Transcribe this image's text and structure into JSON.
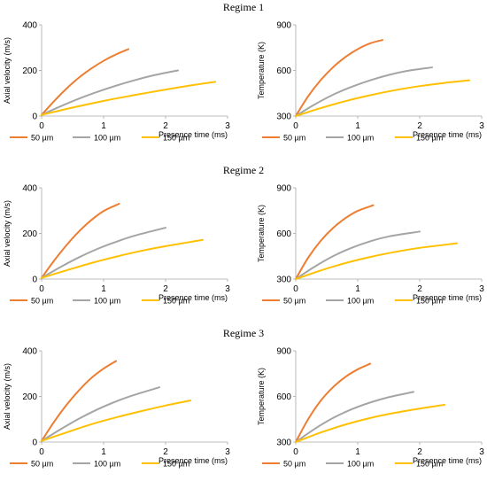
{
  "chart_data": {
    "type": "line",
    "x_unit": "ms",
    "colors": {
      "50 µm": "#ed7d31",
      "100 µm": "#a5a5a5",
      "150 µm": "#ffc000"
    },
    "legend": [
      "50 µm",
      "100 µm",
      "150 µm"
    ],
    "legend_position": "bottom",
    "regimes": [
      {
        "title": "Regime 1",
        "charts": [
          {
            "ylabel": "Axial velocity (m/s)",
            "xlabel": "Presence time (ms)",
            "xlim": [
              0,
              3
            ],
            "ylim": [
              0,
              400
            ],
            "xticks": [
              "0",
              "1",
              "2",
              "3"
            ],
            "yticks": [
              "0",
              "200",
              "400"
            ],
            "series": [
              {
                "name": "50 µm",
                "x": [
                  0,
                  0.2,
                  0.4,
                  0.6,
                  0.8,
                  1.0,
                  1.2,
                  1.4
                ],
                "y": [
                  5,
                  65,
                  120,
                  168,
                  208,
                  242,
                  270,
                  293
                ]
              },
              {
                "name": "100 µm",
                "x": [
                  0,
                  0.3,
                  0.6,
                  0.9,
                  1.2,
                  1.5,
                  1.8,
                  2.2
                ],
                "y": [
                  5,
                  42,
                  76,
                  106,
                  133,
                  157,
                  178,
                  200
                ]
              },
              {
                "name": "150 µm",
                "x": [
                  0,
                  0.4,
                  0.8,
                  1.2,
                  1.6,
                  2.0,
                  2.4,
                  2.8
                ],
                "y": [
                  5,
                  31,
                  55,
                  77,
                  97,
                  116,
                  134,
                  150
                ]
              }
            ]
          },
          {
            "ylabel": "Temperature (K)",
            "xlabel": "Presence time (ms)",
            "xlim": [
              0,
              3
            ],
            "ylim": [
              300,
              900
            ],
            "xticks": [
              "0",
              "1",
              "2",
              "3"
            ],
            "yticks": [
              "300",
              "600",
              "900"
            ],
            "series": [
              {
                "name": "50 µm",
                "x": [
                  0,
                  0.2,
                  0.4,
                  0.6,
                  0.8,
                  1.0,
                  1.2,
                  1.4
                ],
                "y": [
                  300,
                  430,
                  535,
                  620,
                  688,
                  740,
                  778,
                  800
                ]
              },
              {
                "name": "100 µm",
                "x": [
                  0,
                  0.3,
                  0.6,
                  0.9,
                  1.2,
                  1.5,
                  1.8,
                  2.2
                ],
                "y": [
                  300,
                  375,
                  440,
                  492,
                  535,
                  570,
                  597,
                  620
                ]
              },
              {
                "name": "150 µm",
                "x": [
                  0,
                  0.4,
                  0.8,
                  1.2,
                  1.6,
                  2.0,
                  2.4,
                  2.8
                ],
                "y": [
                  300,
                  352,
                  398,
                  437,
                  470,
                  497,
                  518,
                  535
                ]
              }
            ]
          }
        ]
      },
      {
        "title": "Regime 2",
        "charts": [
          {
            "ylabel": "Axial velocity (m/s)",
            "xlabel": "Presence time (ms)",
            "xlim": [
              0,
              3
            ],
            "ylim": [
              0,
              400
            ],
            "xticks": [
              "0",
              "1",
              "2",
              "3"
            ],
            "yticks": [
              "0",
              "200",
              "400"
            ],
            "series": [
              {
                "name": "50 µm",
                "x": [
                  0,
                  0.2,
                  0.4,
                  0.6,
                  0.8,
                  1.0,
                  1.25
                ],
                "y": [
                  5,
                  80,
                  148,
                  208,
                  258,
                  298,
                  330
                ]
              },
              {
                "name": "100 µm",
                "x": [
                  0,
                  0.3,
                  0.6,
                  0.9,
                  1.2,
                  1.5,
                  2.0
                ],
                "y": [
                  5,
                  52,
                  95,
                  132,
                  163,
                  190,
                  225
                ]
              },
              {
                "name": "150 µm",
                "x": [
                  0,
                  0.4,
                  0.8,
                  1.2,
                  1.6,
                  2.0,
                  2.6
                ],
                "y": [
                  5,
                  38,
                  70,
                  98,
                  123,
                  144,
                  172
                ]
              }
            ]
          },
          {
            "ylabel": "Temperature (K)",
            "xlabel": "Presence time (ms)",
            "xlim": [
              0,
              3
            ],
            "ylim": [
              300,
              900
            ],
            "xticks": [
              "0",
              "1",
              "2",
              "3"
            ],
            "yticks": [
              "300",
              "600",
              "900"
            ],
            "series": [
              {
                "name": "50 µm",
                "x": [
                  0,
                  0.2,
                  0.4,
                  0.6,
                  0.8,
                  1.0,
                  1.25
                ],
                "y": [
                  300,
                  440,
                  550,
                  635,
                  700,
                  748,
                  785
                ]
              },
              {
                "name": "100 µm",
                "x": [
                  0,
                  0.3,
                  0.6,
                  0.9,
                  1.2,
                  1.5,
                  2.0
                ],
                "y": [
                  300,
                  380,
                  450,
                  505,
                  548,
                  580,
                  612
                ]
              },
              {
                "name": "150 µm",
                "x": [
                  0,
                  0.4,
                  0.8,
                  1.2,
                  1.6,
                  2.0,
                  2.6
                ],
                "y": [
                  300,
                  356,
                  405,
                  445,
                  478,
                  505,
                  535
                ]
              }
            ]
          }
        ]
      },
      {
        "title": "Regime 3",
        "charts": [
          {
            "ylabel": "Axial velocity (m/s)",
            "xlabel": "Presence time (ms)",
            "xlim": [
              0,
              3
            ],
            "ylim": [
              0,
              400
            ],
            "xticks": [
              "0",
              "1",
              "2",
              "3"
            ],
            "yticks": [
              "0",
              "200",
              "400"
            ],
            "series": [
              {
                "name": "50 µm",
                "x": [
                  0,
                  0.2,
                  0.4,
                  0.6,
                  0.8,
                  1.0,
                  1.2
                ],
                "y": [
                  5,
                  88,
                  162,
                  226,
                  280,
                  322,
                  355
                ]
              },
              {
                "name": "100 µm",
                "x": [
                  0,
                  0.3,
                  0.6,
                  0.9,
                  1.2,
                  1.5,
                  1.9
                ],
                "y": [
                  5,
                  55,
                  102,
                  143,
                  178,
                  207,
                  240
                ]
              },
              {
                "name": "150 µm",
                "x": [
                  0,
                  0.4,
                  0.8,
                  1.2,
                  1.6,
                  2.0,
                  2.4
                ],
                "y": [
                  5,
                  42,
                  78,
                  108,
                  135,
                  160,
                  182
                ]
              }
            ]
          },
          {
            "ylabel": "Temperature (K)",
            "xlabel": "Presence time (ms)",
            "xlim": [
              0,
              3
            ],
            "ylim": [
              300,
              900
            ],
            "xticks": [
              "0",
              "1",
              "2",
              "3"
            ],
            "yticks": [
              "300",
              "600",
              "900"
            ],
            "series": [
              {
                "name": "50 µm",
                "x": [
                  0,
                  0.2,
                  0.4,
                  0.6,
                  0.8,
                  1.0,
                  1.2
                ],
                "y": [
                  300,
                  450,
                  570,
                  660,
                  728,
                  778,
                  815
                ]
              },
              {
                "name": "100 µm",
                "x": [
                  0,
                  0.3,
                  0.6,
                  0.9,
                  1.2,
                  1.5,
                  1.9
                ],
                "y": [
                  300,
                  385,
                  458,
                  515,
                  560,
                  595,
                  630
                ]
              },
              {
                "name": "150 µm",
                "x": [
                  0,
                  0.4,
                  0.8,
                  1.2,
                  1.6,
                  2.0,
                  2.4
                ],
                "y": [
                  300,
                  362,
                  415,
                  458,
                  492,
                  520,
                  545
                ]
              }
            ]
          }
        ]
      }
    ]
  }
}
